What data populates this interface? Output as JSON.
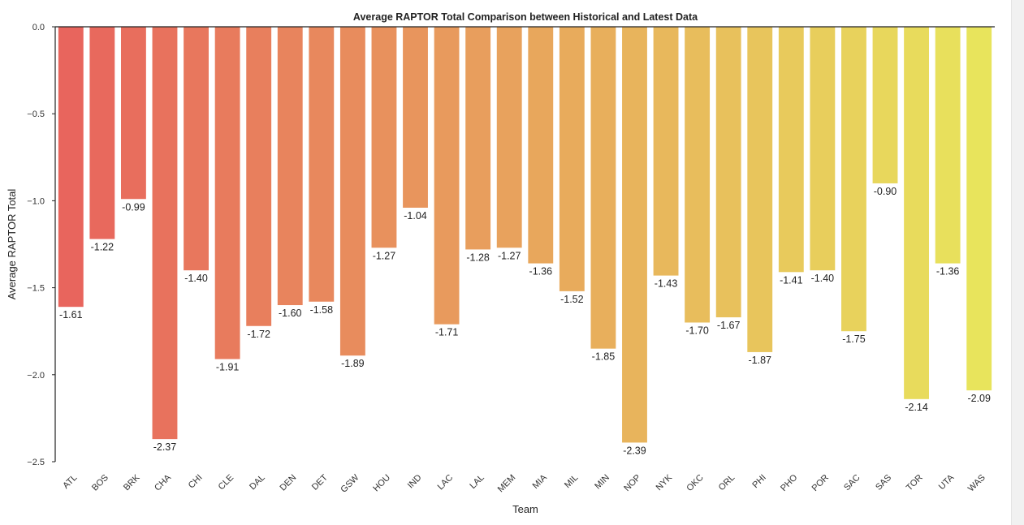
{
  "chart_data": {
    "type": "bar",
    "title": "Average RAPTOR Total Comparison between Historical and Latest Data",
    "xlabel": "Team",
    "ylabel": "Average RAPTOR Total",
    "ylim": [
      -2.5,
      0.0
    ],
    "yticks": [
      "0.0",
      "−0.5",
      "−1.0",
      "−1.5",
      "−2.0",
      "−2.5"
    ],
    "grid": false,
    "categories": [
      "ATL",
      "BOS",
      "BRK",
      "CHA",
      "CHI",
      "CLE",
      "DAL",
      "DEN",
      "DET",
      "GSW",
      "HOU",
      "IND",
      "LAC",
      "LAL",
      "MEM",
      "MIA",
      "MIL",
      "MIN",
      "NOP",
      "NYK",
      "OKC",
      "ORL",
      "PHI",
      "PHO",
      "POR",
      "SAC",
      "SAS",
      "TOR",
      "UTA",
      "WAS"
    ],
    "values": [
      -1.61,
      -1.22,
      -0.99,
      -2.37,
      -1.4,
      -1.91,
      -1.72,
      -1.6,
      -1.58,
      -1.89,
      -1.27,
      -1.04,
      -1.71,
      -1.28,
      -1.27,
      -1.36,
      -1.52,
      -1.85,
      -2.39,
      -1.43,
      -1.7,
      -1.67,
      -1.87,
      -1.41,
      -1.4,
      -1.75,
      -0.9,
      -2.14,
      -1.36,
      -2.09
    ],
    "data_labels": [
      "-1.61",
      "-1.22",
      "-0.99",
      "-2.37",
      "-1.40",
      "-1.91",
      "-1.72",
      "-1.60",
      "-1.58",
      "-1.89",
      "-1.27",
      "-1.04",
      "-1.71",
      "-1.28",
      "-1.27",
      "-1.36",
      "-1.52",
      "-1.85",
      "-2.39",
      "-1.43",
      "-1.70",
      "-1.67",
      "-1.87",
      "-1.41",
      "-1.40",
      "-1.75",
      "-0.90",
      "-2.14",
      "-1.36",
      "-2.09"
    ],
    "palette": {
      "start": "#e8655d",
      "end": "#e8e45c"
    }
  }
}
